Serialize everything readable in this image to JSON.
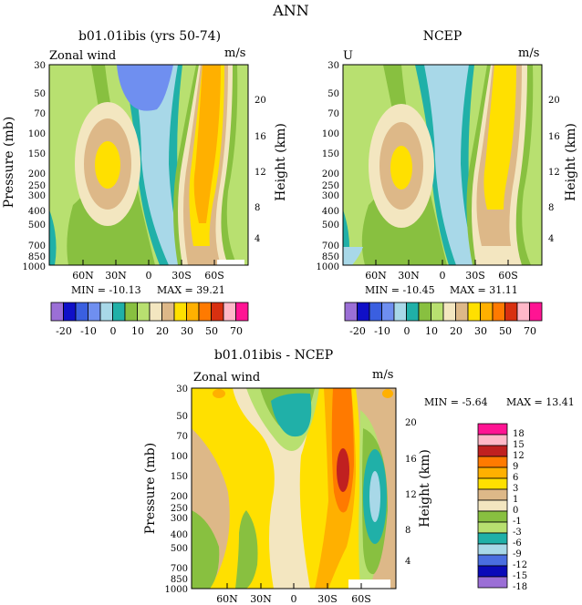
{
  "main_title": "ANN",
  "colors": {
    "full_bar": [
      "#9b6fd6",
      "#1010c8",
      "#3a5fe0",
      "#6f8ff0",
      "#a8d8e8",
      "#20b0a8",
      "#88c040",
      "#b8e070",
      "#f3e6c0",
      "#ddb888",
      "#ffe000",
      "#ffb000",
      "#ff7a00",
      "#d83010",
      "#ffb8c8",
      "#ff1493"
    ],
    "diff_bar": [
      "#9b6fd6",
      "#0a0ab8",
      "#4a6ee0",
      "#a8d8e8",
      "#20b0a8",
      "#b8e070",
      "#88c040",
      "#f3e6c0",
      "#ddb888",
      "#ffe000",
      "#ffb000",
      "#ff7a00",
      "#c02020",
      "#ffb8c8",
      "#ff1493"
    ]
  },
  "chart_data": [
    {
      "type": "contour",
      "title": "b01.01ibis (yrs 50-74)",
      "subtitle_left": "Zonal wind",
      "units": "m/s",
      "ylabel": "Pressure (mb)",
      "y2label": "Height (km)",
      "y_ticks": [
        "30",
        "50",
        "70",
        "100",
        "150",
        "200",
        "250",
        "300",
        "400",
        "500",
        "700",
        "850",
        "1000"
      ],
      "y2_ticks": [
        "20",
        "16",
        "12",
        "8",
        "4"
      ],
      "x_ticks": [
        "60N",
        "30N",
        "0",
        "30S",
        "60S"
      ],
      "min_label": "MIN = -10.13",
      "max_label": "MAX = 39.21",
      "min": -10.13,
      "max": 39.21,
      "colorbar_labels": [
        "-20",
        "-10",
        "0",
        "10",
        "20",
        "30",
        "50",
        "70"
      ]
    },
    {
      "type": "contour",
      "title": "NCEP",
      "subtitle_left": "U",
      "units": "m/s",
      "y2label": "Height (km)",
      "y_ticks": [
        "30",
        "50",
        "70",
        "100",
        "150",
        "200",
        "250",
        "300",
        "400",
        "500",
        "700",
        "850",
        "1000"
      ],
      "y2_ticks": [
        "20",
        "16",
        "12",
        "8",
        "4"
      ],
      "x_ticks": [
        "60N",
        "30N",
        "0",
        "30S",
        "60S"
      ],
      "min_label": "MIN = -10.45",
      "max_label": "MAX = 31.11",
      "min": -10.45,
      "max": 31.11,
      "colorbar_labels": [
        "-20",
        "-10",
        "0",
        "10",
        "20",
        "30",
        "50",
        "70"
      ]
    },
    {
      "type": "contour",
      "title": "b01.01ibis - NCEP",
      "subtitle_left": "Zonal wind",
      "units": "m/s",
      "ylabel": "Pressure (mb)",
      "y2label": "Height (km)",
      "y_ticks": [
        "30",
        "50",
        "70",
        "100",
        "150",
        "200",
        "250",
        "300",
        "400",
        "500",
        "700",
        "850",
        "1000"
      ],
      "y2_ticks": [
        "20",
        "16",
        "12",
        "8",
        "4"
      ],
      "x_ticks": [
        "60N",
        "30N",
        "0",
        "30S",
        "60S"
      ],
      "min_label": "MIN = -5.64",
      "max_label": "MAX = 13.41",
      "min": -5.64,
      "max": 13.41,
      "colorbar_labels": [
        "18",
        "15",
        "12",
        "9",
        "6",
        "3",
        "1",
        "0",
        "-1",
        "-3",
        "-6",
        "-9",
        "-12",
        "-15",
        "-18"
      ]
    }
  ]
}
